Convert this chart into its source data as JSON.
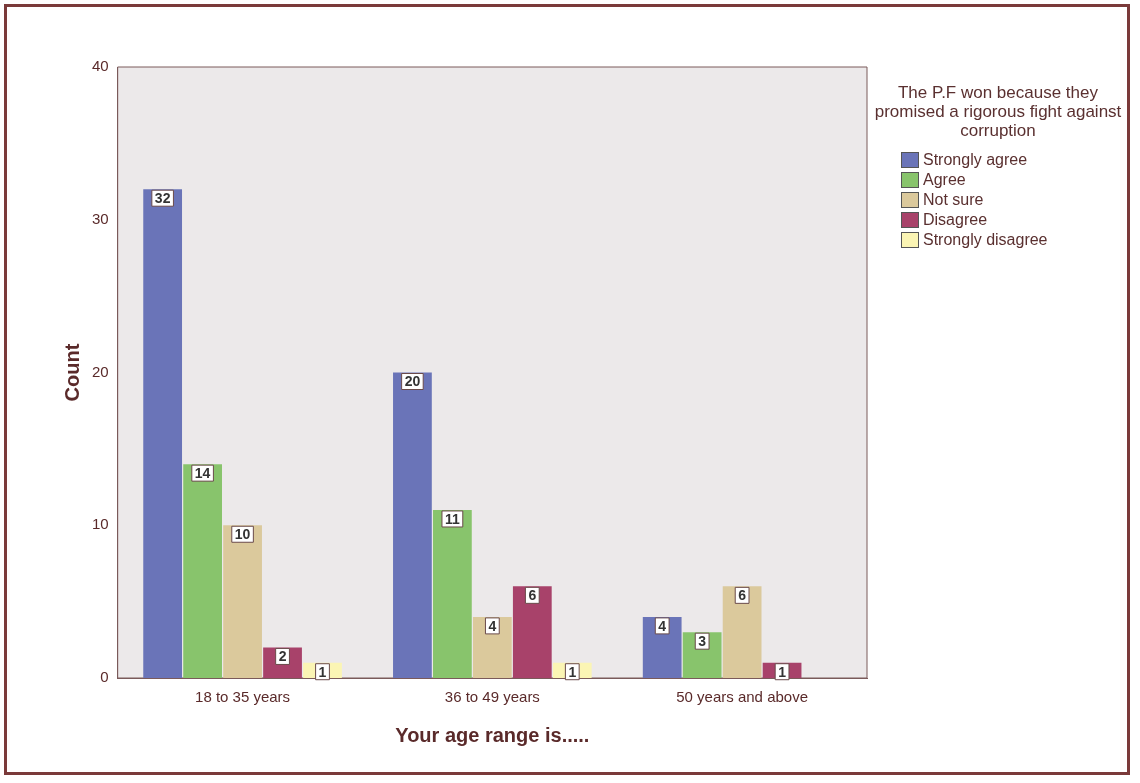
{
  "chart_data": {
    "type": "bar",
    "xlabel": "Your age range is.....",
    "ylabel": "Count",
    "legend_title": "The P.F won because they promised a rigorous fight against corruption",
    "categories": [
      "18 to 35 years",
      "36 to 49 years",
      "50 years and above"
    ],
    "series": [
      {
        "name": "Strongly agree",
        "color": "#6a74b8",
        "values": [
          32,
          20,
          4
        ]
      },
      {
        "name": "Agree",
        "color": "#88c46c",
        "values": [
          14,
          11,
          3
        ]
      },
      {
        "name": "Not sure",
        "color": "#dbc99c",
        "values": [
          10,
          4,
          6
        ]
      },
      {
        "name": "Disagree",
        "color": "#a8426a",
        "values": [
          2,
          6,
          1
        ]
      },
      {
        "name": "Strongly disagree",
        "color": "#fbf5b4",
        "values": [
          1,
          1,
          null
        ]
      }
    ],
    "ylim": [
      0,
      40
    ],
    "yticks": [
      0,
      10,
      20,
      30,
      40
    ],
    "grid": false,
    "legend": "top right",
    "data_labels": true
  }
}
